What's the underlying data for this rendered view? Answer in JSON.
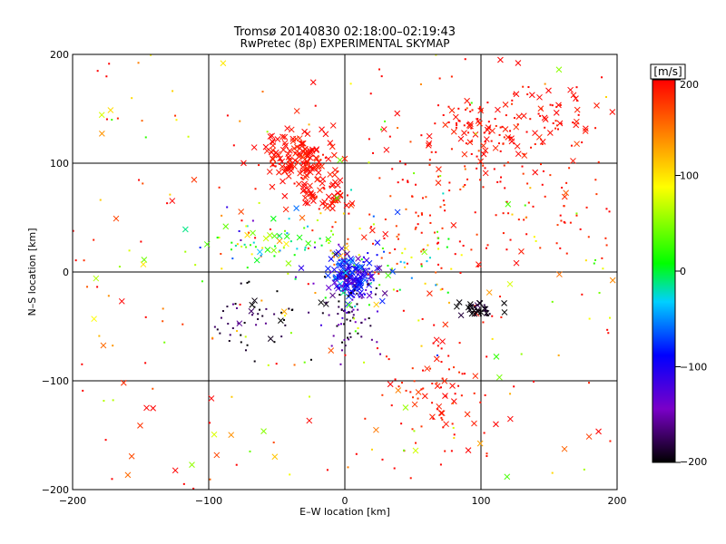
{
  "chart_data": {
    "type": "scatter",
    "title": "Tromsø 20140830 02:18:00–02:19:43",
    "subtitle": "RwPretec (8p) EXPERIMENTAL SKYMAP",
    "xlabel": "E–W location [km]",
    "ylabel": "N–S location [km]",
    "xlim": [
      -200,
      200
    ],
    "ylim": [
      -200,
      200
    ],
    "x_ticks": [
      -200,
      -100,
      0,
      100,
      200
    ],
    "y_ticks": [
      -200,
      -100,
      0,
      100,
      200
    ],
    "x_tick_labels": [
      "−200",
      "−100",
      "0",
      "100",
      "200"
    ],
    "y_tick_labels": [
      "−200",
      "−100",
      "0",
      "100",
      "200"
    ],
    "grid": true,
    "marker_types": [
      "dot",
      "cross"
    ],
    "colorbar": {
      "label": "[m/s]",
      "range": [
        -200,
        200
      ],
      "ticks": [
        200,
        100,
        0,
        -100,
        -200
      ],
      "tick_labels": [
        "200",
        "100",
        "0",
        "−100",
        "−200"
      ],
      "colormap": "rainbow",
      "colormap_stops": [
        "#000000",
        "#7a00c8",
        "#0000ff",
        "#00d0ff",
        "#00ff00",
        "#ffff00",
        "#ff8000",
        "#ff0000"
      ]
    },
    "clusters": [
      {
        "x": -35,
        "y": 105,
        "sx": 15,
        "sy": 12,
        "n": 140,
        "v": 195,
        "sv": 8,
        "cross": 0.9
      },
      {
        "x": -15,
        "y": 70,
        "sx": 12,
        "sy": 7,
        "n": 50,
        "v": 195,
        "sv": 8,
        "cross": 0.85
      },
      {
        "x": 90,
        "y": 130,
        "sx": 20,
        "sy": 15,
        "n": 60,
        "v": 195,
        "sv": 8,
        "cross": 0.5
      },
      {
        "x": 135,
        "y": 140,
        "sx": 25,
        "sy": 18,
        "n": 80,
        "v": 195,
        "sv": 8,
        "cross": 0.6
      },
      {
        "x": 90,
        "y": 60,
        "sx": 55,
        "sy": 40,
        "n": 170,
        "v": 190,
        "sv": 12,
        "cross": 0.08
      },
      {
        "x": 70,
        "y": -110,
        "sx": 22,
        "sy": 30,
        "n": 90,
        "v": 190,
        "sv": 10,
        "cross": 0.25
      },
      {
        "x": 5,
        "y": -5,
        "sx": 8,
        "sy": 10,
        "n": 150,
        "v": -100,
        "sv": 30,
        "cross": 0.75
      },
      {
        "x": 5,
        "y": -35,
        "sx": 12,
        "sy": 20,
        "n": 80,
        "v": -170,
        "sv": 30,
        "cross": 0.05
      },
      {
        "x": -65,
        "y": -45,
        "sx": 15,
        "sy": 15,
        "n": 50,
        "v": -190,
        "sv": 15,
        "cross": 0.15
      },
      {
        "x": 97,
        "y": -35,
        "sx": 8,
        "sy": 4,
        "n": 35,
        "v": -195,
        "sv": 8,
        "cross": 0.6
      },
      {
        "x": -55,
        "y": 30,
        "sx": 30,
        "sy": 15,
        "n": 60,
        "v": 20,
        "sv": 80,
        "cross": 0.3
      },
      {
        "x": 30,
        "y": 10,
        "sx": 30,
        "sy": 25,
        "n": 70,
        "v": 40,
        "sv": 90,
        "cross": 0.1
      },
      {
        "x": -40,
        "y": 20,
        "sx": 40,
        "sy": 10,
        "n": 30,
        "v": 60,
        "sv": 80,
        "cross": 0.2
      }
    ],
    "scatter_background": {
      "n": 230,
      "v_mean": 150,
      "v_spread": 130,
      "cross_fraction": 0.25
    }
  }
}
